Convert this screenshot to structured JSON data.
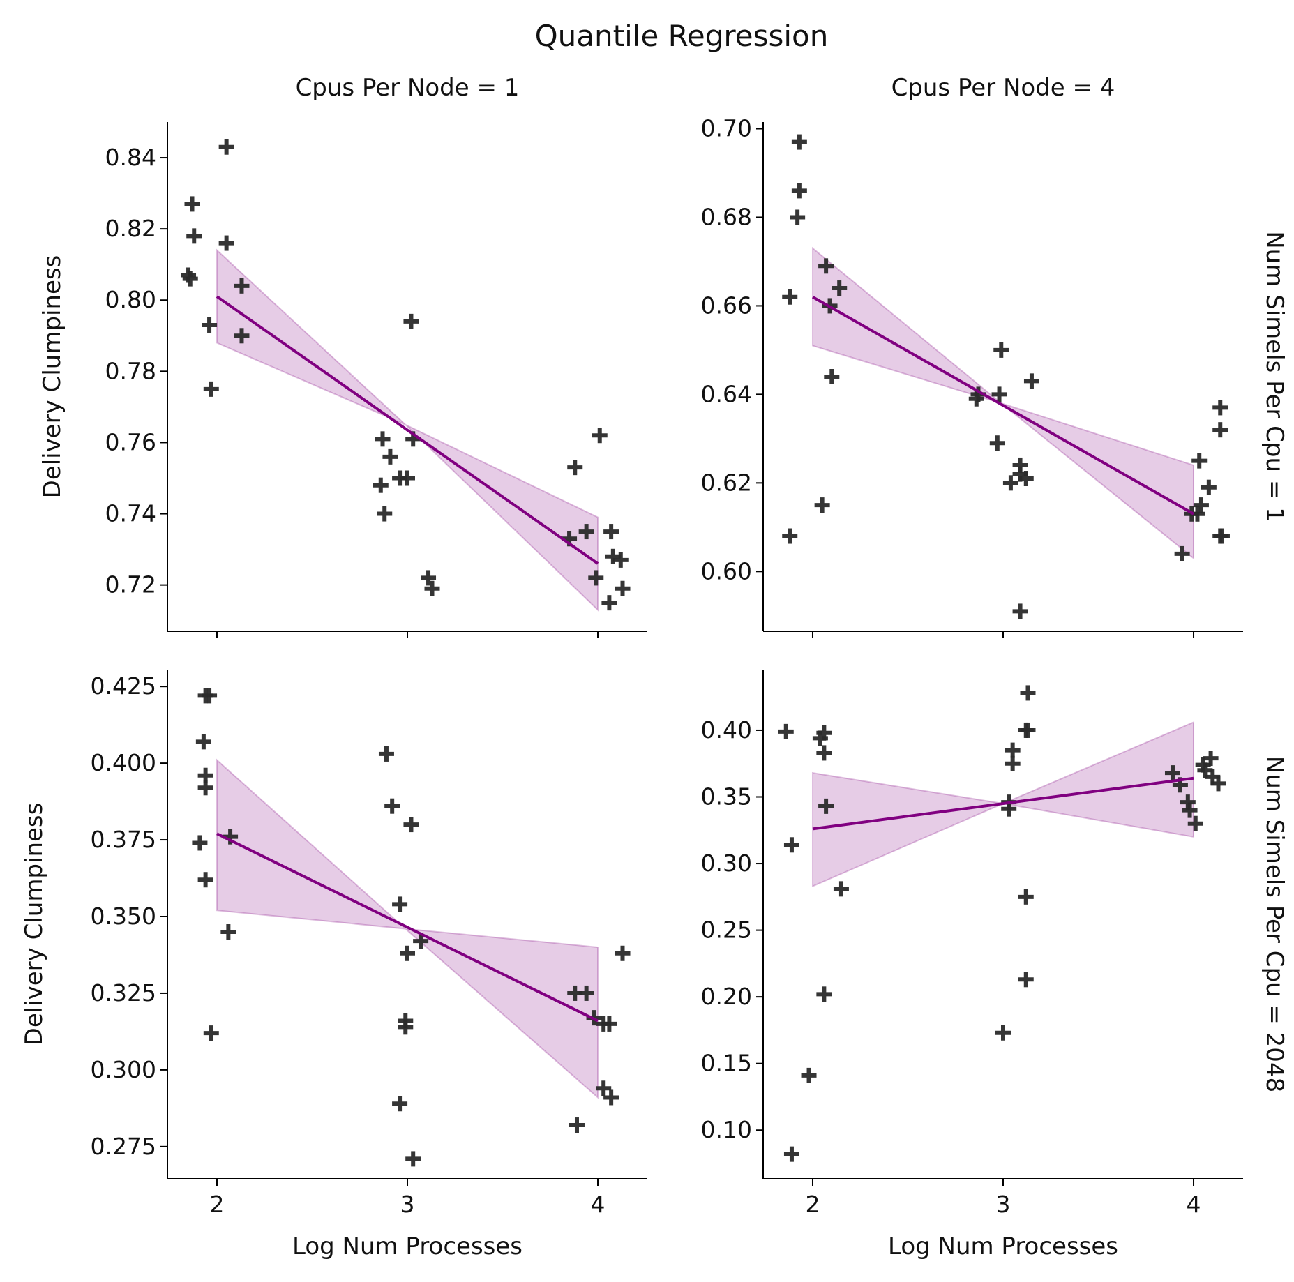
{
  "figure": {
    "title": "Quantile Regression"
  },
  "colors": {
    "fit": "#800080",
    "band": "#800080",
    "marker": "#2b2b2b"
  },
  "chart_data": [
    {
      "type": "scatter",
      "id": "r0c0",
      "col_title": "Cpus Per Node = 1",
      "row_title": "",
      "ylabel": "Delivery Clumpiness",
      "xlabel": "",
      "xlim": [
        1.74,
        4.26
      ],
      "ylim": [
        0.707,
        0.85
      ],
      "xticks": [
        2,
        3,
        4
      ],
      "xticklabels": [],
      "yticks": [
        0.72,
        0.74,
        0.76,
        0.78,
        0.8,
        0.82,
        0.84
      ],
      "yticklabels": [
        "0.72",
        "0.74",
        "0.76",
        "0.78",
        "0.80",
        "0.82",
        "0.84"
      ],
      "points": [
        [
          1.87,
          0.827
        ],
        [
          1.88,
          0.818
        ],
        [
          1.85,
          0.807
        ],
        [
          1.86,
          0.806
        ],
        [
          1.96,
          0.793
        ],
        [
          1.97,
          0.775
        ],
        [
          2.05,
          0.843
        ],
        [
          2.05,
          0.816
        ],
        [
          2.13,
          0.804
        ],
        [
          2.13,
          0.79
        ],
        [
          2.87,
          0.761
        ],
        [
          2.91,
          0.756
        ],
        [
          2.86,
          0.748
        ],
        [
          2.88,
          0.74
        ],
        [
          2.96,
          0.75
        ],
        [
          3.0,
          0.75
        ],
        [
          3.02,
          0.794
        ],
        [
          3.03,
          0.761
        ],
        [
          3.11,
          0.722
        ],
        [
          3.13,
          0.719
        ],
        [
          3.88,
          0.753
        ],
        [
          3.85,
          0.733
        ],
        [
          3.94,
          0.735
        ],
        [
          3.99,
          0.722
        ],
        [
          4.01,
          0.762
        ],
        [
          4.07,
          0.735
        ],
        [
          4.08,
          0.728
        ],
        [
          4.12,
          0.727
        ],
        [
          4.06,
          0.715
        ],
        [
          4.13,
          0.719
        ]
      ],
      "fit": {
        "x": [
          2,
          4
        ],
        "y": [
          0.801,
          0.726
        ]
      },
      "band": {
        "x": [
          2,
          2.99,
          4
        ],
        "upper": [
          0.814,
          0.765,
          0.739
        ],
        "lower": [
          0.788,
          0.765,
          0.713
        ]
      }
    },
    {
      "type": "scatter",
      "id": "r0c1",
      "col_title": "Cpus Per Node = 4",
      "row_title": "Num Simels Per Cpu = 1",
      "ylabel": "",
      "xlabel": "",
      "xlim": [
        1.74,
        4.26
      ],
      "ylim": [
        0.5865,
        0.7015
      ],
      "xticks": [
        2,
        3,
        4
      ],
      "xticklabels": [],
      "yticks": [
        0.6,
        0.62,
        0.64,
        0.66,
        0.68,
        0.7
      ],
      "yticklabels": [
        "0.60",
        "0.62",
        "0.64",
        "0.66",
        "0.68",
        "0.70"
      ],
      "points": [
        [
          1.93,
          0.697
        ],
        [
          1.93,
          0.686
        ],
        [
          1.92,
          0.68
        ],
        [
          1.88,
          0.662
        ],
        [
          1.88,
          0.608
        ],
        [
          2.07,
          0.669
        ],
        [
          2.09,
          0.66
        ],
        [
          2.14,
          0.664
        ],
        [
          2.1,
          0.644
        ],
        [
          2.05,
          0.615
        ],
        [
          2.86,
          0.639
        ],
        [
          2.87,
          0.64
        ],
        [
          2.99,
          0.65
        ],
        [
          2.98,
          0.64
        ],
        [
          2.97,
          0.629
        ],
        [
          3.15,
          0.643
        ],
        [
          3.04,
          0.62
        ],
        [
          3.09,
          0.624
        ],
        [
          3.09,
          0.622
        ],
        [
          3.12,
          0.621
        ],
        [
          3.09,
          0.591
        ],
        [
          4.03,
          0.625
        ],
        [
          3.99,
          0.613
        ],
        [
          4.02,
          0.613
        ],
        [
          4.04,
          0.615
        ],
        [
          4.08,
          0.619
        ],
        [
          4.14,
          0.637
        ],
        [
          4.14,
          0.632
        ],
        [
          4.14,
          0.608
        ],
        [
          4.15,
          0.608
        ],
        [
          3.94,
          0.604
        ]
      ],
      "fit": {
        "x": [
          2,
          4
        ],
        "y": [
          0.662,
          0.613
        ]
      },
      "band": {
        "x": [
          2,
          2.99,
          4
        ],
        "upper": [
          0.673,
          0.638,
          0.624
        ],
        "lower": [
          0.651,
          0.638,
          0.603
        ]
      }
    },
    {
      "type": "scatter",
      "id": "r1c0",
      "col_title": "",
      "row_title": "",
      "ylabel": "Delivery Clumpiness",
      "xlabel": "Log Num Processes",
      "xlim": [
        1.74,
        4.26
      ],
      "ylim": [
        0.2645,
        0.4305
      ],
      "xticks": [
        2,
        3,
        4
      ],
      "xticklabels": [
        "2",
        "3",
        "4"
      ],
      "yticks": [
        0.275,
        0.3,
        0.325,
        0.35,
        0.375,
        0.4,
        0.425
      ],
      "yticklabels": [
        "0.275",
        "0.300",
        "0.325",
        "0.350",
        "0.375",
        "0.400",
        "0.425"
      ],
      "points": [
        [
          1.94,
          0.422
        ],
        [
          1.96,
          0.422
        ],
        [
          1.93,
          0.407
        ],
        [
          1.94,
          0.396
        ],
        [
          1.94,
          0.392
        ],
        [
          1.91,
          0.374
        ],
        [
          1.94,
          0.362
        ],
        [
          1.97,
          0.312
        ],
        [
          2.07,
          0.376
        ],
        [
          2.06,
          0.345
        ],
        [
          2.89,
          0.403
        ],
        [
          2.92,
          0.386
        ],
        [
          3.02,
          0.38
        ],
        [
          2.96,
          0.354
        ],
        [
          3.0,
          0.338
        ],
        [
          2.99,
          0.316
        ],
        [
          2.99,
          0.314
        ],
        [
          2.96,
          0.289
        ],
        [
          3.03,
          0.271
        ],
        [
          3.07,
          0.342
        ],
        [
          3.88,
          0.325
        ],
        [
          3.94,
          0.325
        ],
        [
          3.98,
          0.317
        ],
        [
          4.03,
          0.315
        ],
        [
          4.06,
          0.315
        ],
        [
          4.03,
          0.294
        ],
        [
          4.07,
          0.291
        ],
        [
          3.89,
          0.282
        ],
        [
          4.13,
          0.338
        ]
      ],
      "fit": {
        "x": [
          2,
          4
        ],
        "y": [
          0.377,
          0.316
        ]
      },
      "band": {
        "x": [
          2,
          2.99,
          4
        ],
        "upper": [
          0.401,
          0.346,
          0.34
        ],
        "lower": [
          0.352,
          0.346,
          0.291
        ]
      }
    },
    {
      "type": "scatter",
      "id": "r1c1",
      "col_title": "",
      "row_title": "Num Simels Per Cpu = 2048",
      "ylabel": "",
      "xlabel": "Log Num Processes",
      "xlim": [
        1.74,
        4.26
      ],
      "ylim": [
        0.0635,
        0.4455
      ],
      "xticks": [
        2,
        3,
        4
      ],
      "xticklabels": [
        "2",
        "3",
        "4"
      ],
      "yticks": [
        0.1,
        0.15,
        0.2,
        0.25,
        0.3,
        0.35,
        0.4
      ],
      "yticklabels": [
        "0.10",
        "0.15",
        "0.20",
        "0.25",
        "0.30",
        "0.35",
        "0.40"
      ],
      "points": [
        [
          1.86,
          0.399
        ],
        [
          1.89,
          0.314
        ],
        [
          1.98,
          0.141
        ],
        [
          1.89,
          0.082
        ],
        [
          2.06,
          0.398
        ],
        [
          2.04,
          0.394
        ],
        [
          2.06,
          0.383
        ],
        [
          2.07,
          0.343
        ],
        [
          2.15,
          0.281
        ],
        [
          2.06,
          0.202
        ],
        [
          3.13,
          0.428
        ],
        [
          3.12,
          0.4
        ],
        [
          3.13,
          0.4
        ],
        [
          3.05,
          0.385
        ],
        [
          3.05,
          0.375
        ],
        [
          3.03,
          0.346
        ],
        [
          3.03,
          0.341
        ],
        [
          3.12,
          0.275
        ],
        [
          3.12,
          0.213
        ],
        [
          3.0,
          0.173
        ],
        [
          3.89,
          0.368
        ],
        [
          3.93,
          0.359
        ],
        [
          3.97,
          0.346
        ],
        [
          3.98,
          0.34
        ],
        [
          4.01,
          0.33
        ],
        [
          4.05,
          0.374
        ],
        [
          4.06,
          0.37
        ],
        [
          4.09,
          0.379
        ],
        [
          4.1,
          0.365
        ],
        [
          4.13,
          0.36
        ]
      ],
      "fit": {
        "x": [
          2,
          4
        ],
        "y": [
          0.326,
          0.364
        ]
      },
      "band": {
        "x": [
          2,
          3.0,
          4
        ],
        "upper": [
          0.368,
          0.345,
          0.406
        ],
        "lower": [
          0.283,
          0.345,
          0.32
        ]
      }
    }
  ]
}
